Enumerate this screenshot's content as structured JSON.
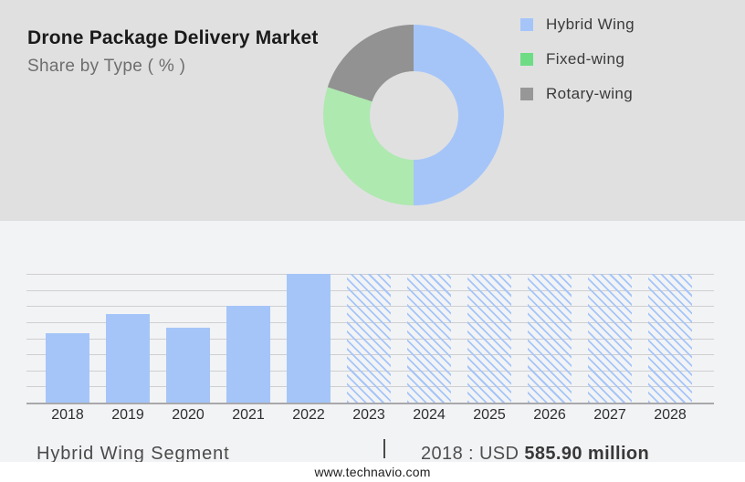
{
  "header": {
    "title": "Drone Package Delivery Market",
    "subtitle": "Share by Type ( % )"
  },
  "legend": {
    "items": [
      {
        "label": "Hybrid Wing",
        "color": "#a5c5f9"
      },
      {
        "label": "Fixed-wing",
        "color": "#6edc85"
      },
      {
        "label": "Rotary-wing",
        "color": "#979797"
      }
    ]
  },
  "chart_data": [
    {
      "type": "pie",
      "subtype": "donut",
      "title": "Share by Type ( % )",
      "labels": [
        "Hybrid Wing",
        "Fixed-wing",
        "Rotary-wing"
      ],
      "values": [
        50,
        30,
        20
      ],
      "colors": [
        "#a5c5f9",
        "#aee9af",
        "#929292"
      ],
      "hole_ratio": 0.49,
      "hole_color": "#e0e0e1",
      "start_angle_deg": 0,
      "direction": "clockwise",
      "legend_position": "right"
    },
    {
      "type": "bar",
      "x": [
        "2018",
        "2019",
        "2020",
        "2021",
        "2022",
        "2023",
        "2024",
        "2025",
        "2026",
        "2027",
        "2028"
      ],
      "values_pct_of_max": [
        54,
        69,
        58,
        75,
        100,
        100,
        100,
        100,
        100,
        100,
        100
      ],
      "forecast": [
        false,
        false,
        false,
        false,
        false,
        true,
        true,
        true,
        true,
        true,
        true
      ],
      "bar_color": "#a5c5f9",
      "hatch_color": "#a5c5f9",
      "hatch_direction": "backslash",
      "gridlines": 9,
      "grid_on": true,
      "y_axis_labels": "none",
      "known_value": {
        "year": "2018",
        "value": "USD 585.90 million"
      },
      "note": "Historic bars 2018-2022 solid; forecast bars 2023-2028 drawn full height with diagonal hatch"
    }
  ],
  "caption": {
    "segment_label": "Hybrid Wing Segment",
    "separator": "|",
    "value_prefix": "2018 : USD ",
    "value_bold": "585.90 million"
  },
  "footer": {
    "website": "www.technavio.com"
  }
}
